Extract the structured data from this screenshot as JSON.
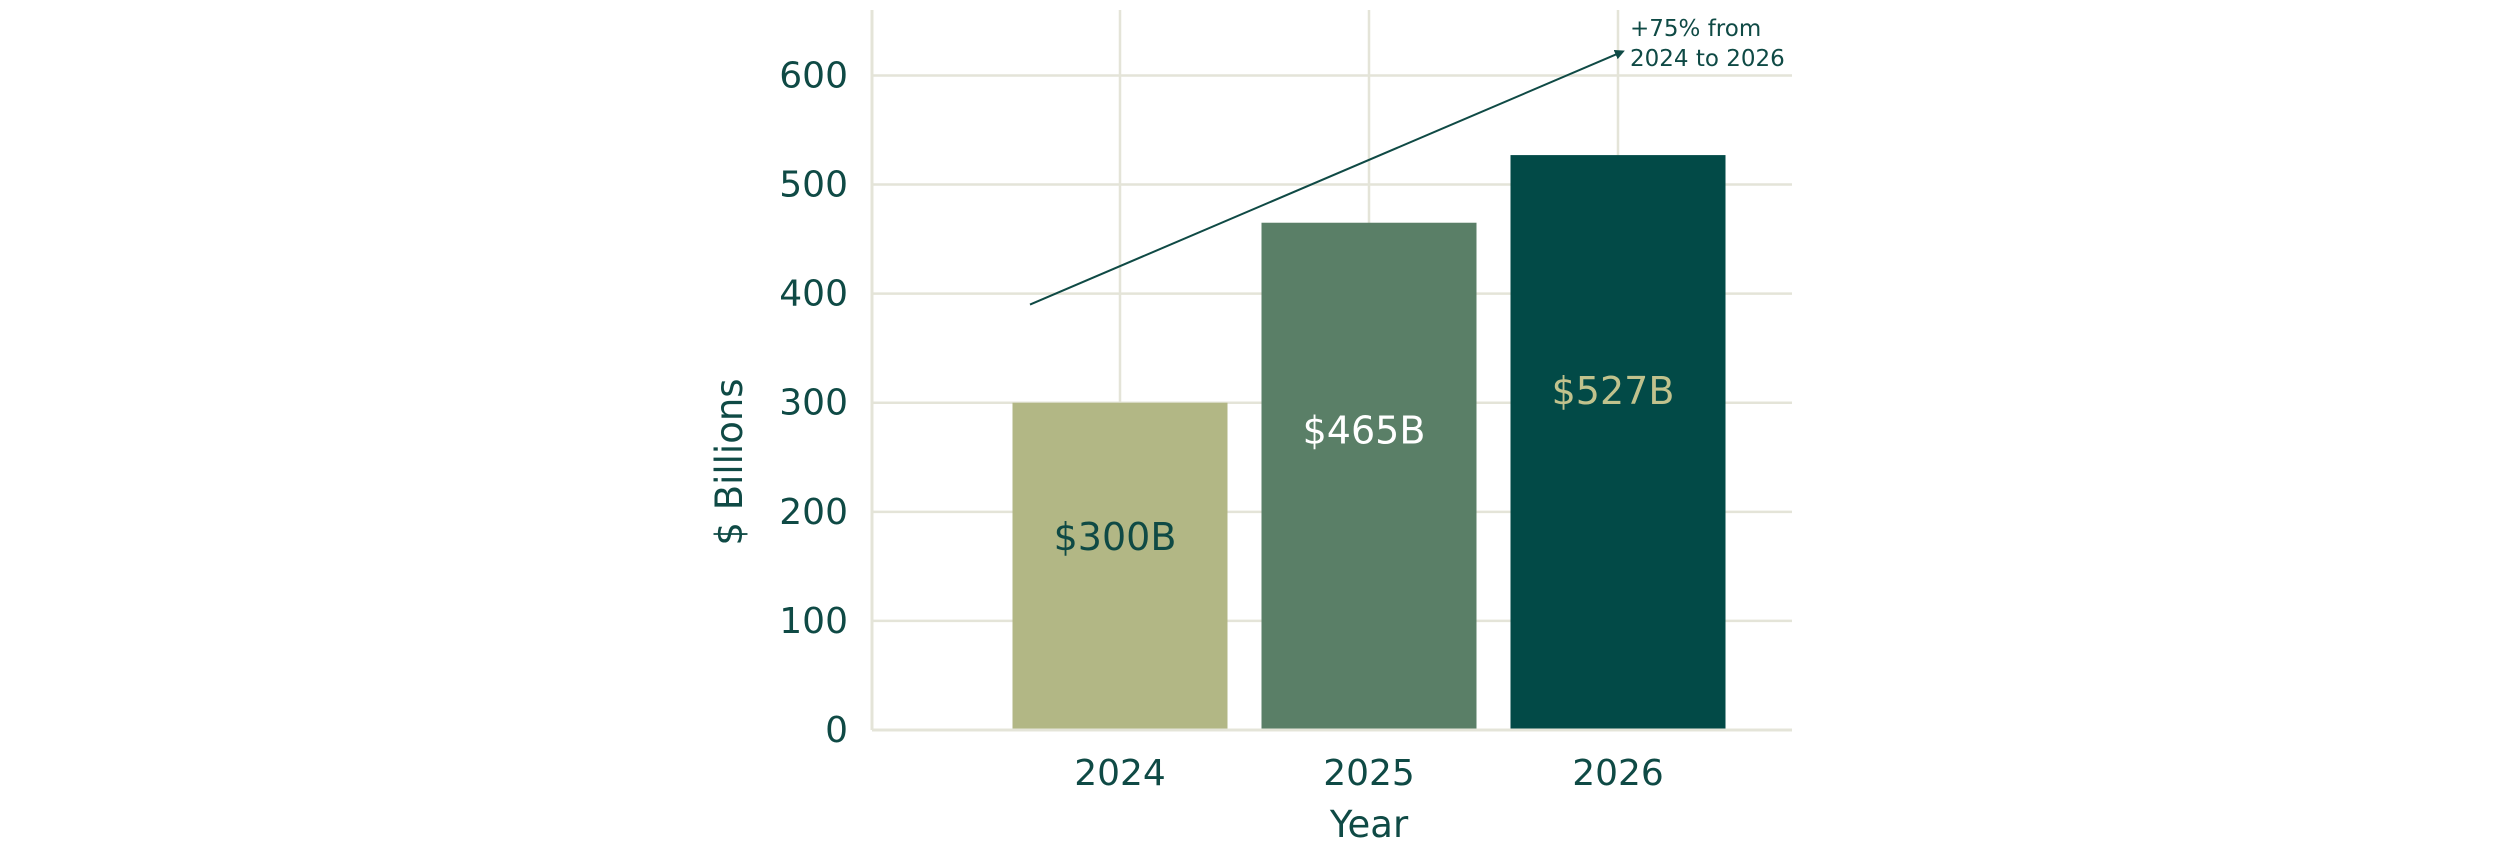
{
  "chart_data": {
    "type": "bar",
    "categories": [
      "2024",
      "2025",
      "2026"
    ],
    "values": [
      300,
      465,
      527
    ],
    "data_labels": [
      "$300B",
      "$465B",
      "$527B"
    ],
    "bar_colors": [
      "#b2b785",
      "#5a7f67",
      "#024a47"
    ],
    "label_colors": [
      "#0f4a45",
      "#ffffff",
      "#c1c28d"
    ],
    "xlabel": "Year",
    "ylabel": "$ Billions",
    "yticks": [
      0,
      100,
      200,
      300,
      400,
      500,
      600
    ],
    "ylim": [
      0,
      660
    ],
    "grid": true,
    "grid_color": "#e4e4d8",
    "text_color": "#0f4a45",
    "annotation": {
      "lines": [
        "+75% from",
        "2024 to 2026"
      ],
      "arrow_from": {
        "x": "2024",
        "y": 390
      },
      "arrow_to": {
        "x": "2026",
        "y": 622
      }
    }
  }
}
